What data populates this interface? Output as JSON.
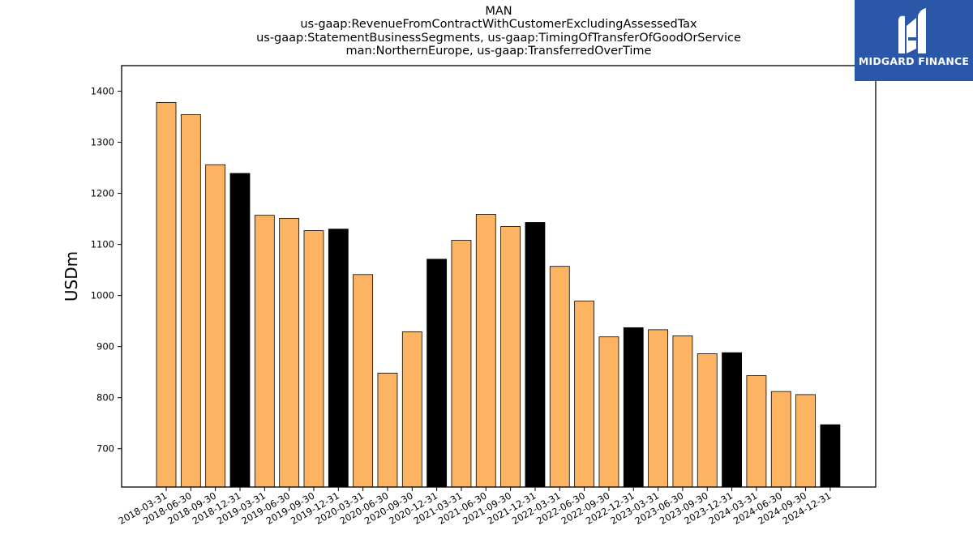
{
  "title_lines": [
    "MAN",
    "us-gaap:RevenueFromContractWithCustomerExcludingAssessedTax",
    "us-gaap:StatementBusinessSegments, us-gaap:TimingOfTransferOfGoodOrService",
    "man:NorthernEurope, us-gaap:TransferredOverTime"
  ],
  "logo": {
    "text": "MIDGARD FINANCE",
    "icon": "midgard-logo-icon"
  },
  "colors": {
    "bar_default": "#fdb462",
    "bar_q4": "#000000",
    "logo_bg": "#2b57a8"
  },
  "chart_data": {
    "type": "bar",
    "ylabel": "USDm",
    "xlabel": "",
    "ylim": [
      625,
      1450
    ],
    "yticks": [
      700,
      800,
      900,
      1000,
      1100,
      1200,
      1300,
      1400
    ],
    "grid": false,
    "categories": [
      "2018-03-31",
      "2018-06-30",
      "2018-09-30",
      "2018-12-31",
      "2019-03-31",
      "2019-06-30",
      "2019-09-30",
      "2019-12-31",
      "2020-03-31",
      "2020-06-30",
      "2020-09-30",
      "2020-12-31",
      "2021-03-31",
      "2021-06-30",
      "2021-09-30",
      "2021-12-31",
      "2022-03-31",
      "2022-06-30",
      "2022-09-30",
      "2022-12-31",
      "2023-03-31",
      "2023-06-30",
      "2023-09-30",
      "2023-12-31",
      "2024-03-31",
      "2024-06-30",
      "2024-09-30",
      "2024-12-31"
    ],
    "values": [
      1378,
      1354,
      1256,
      1239,
      1157,
      1151,
      1127,
      1130,
      1041,
      848,
      929,
      1071,
      1108,
      1159,
      1135,
      1143,
      1057,
      989,
      919,
      937,
      933,
      921,
      886,
      888,
      843,
      812,
      806,
      747
    ]
  }
}
